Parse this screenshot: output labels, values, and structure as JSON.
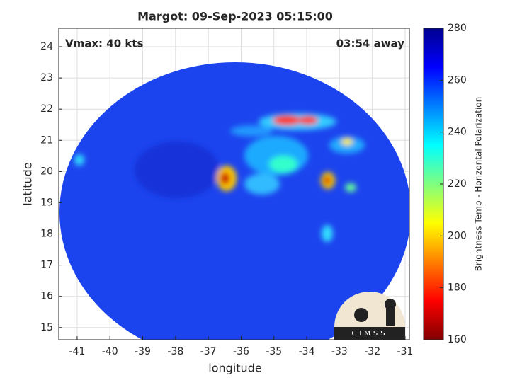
{
  "chart_data": {
    "type": "map",
    "title": "Margot: 09-Sep-2023 05:15:00",
    "xlabel": "longitude",
    "ylabel": "latitude",
    "annotations": [
      "Vmax: 40 kts",
      "03:54 away"
    ],
    "xlim": [
      -41.56,
      -30.87
    ],
    "xticks": [
      -41,
      -40,
      -39,
      -38,
      -37,
      -36,
      -35,
      -34,
      -33,
      -32,
      -31
    ],
    "ylim": [
      14.61,
      24.59
    ],
    "yticks": [
      15,
      16,
      17,
      18,
      19,
      20,
      21,
      22,
      23,
      24
    ],
    "grid": true,
    "colorbar": {
      "label": "Brightness Temp - Horizontal Polarization",
      "clim": [
        160,
        280
      ],
      "ticks": [
        160,
        180,
        200,
        220,
        240,
        260,
        280
      ],
      "colormap": "jet"
    },
    "logo": "CIMSS"
  }
}
